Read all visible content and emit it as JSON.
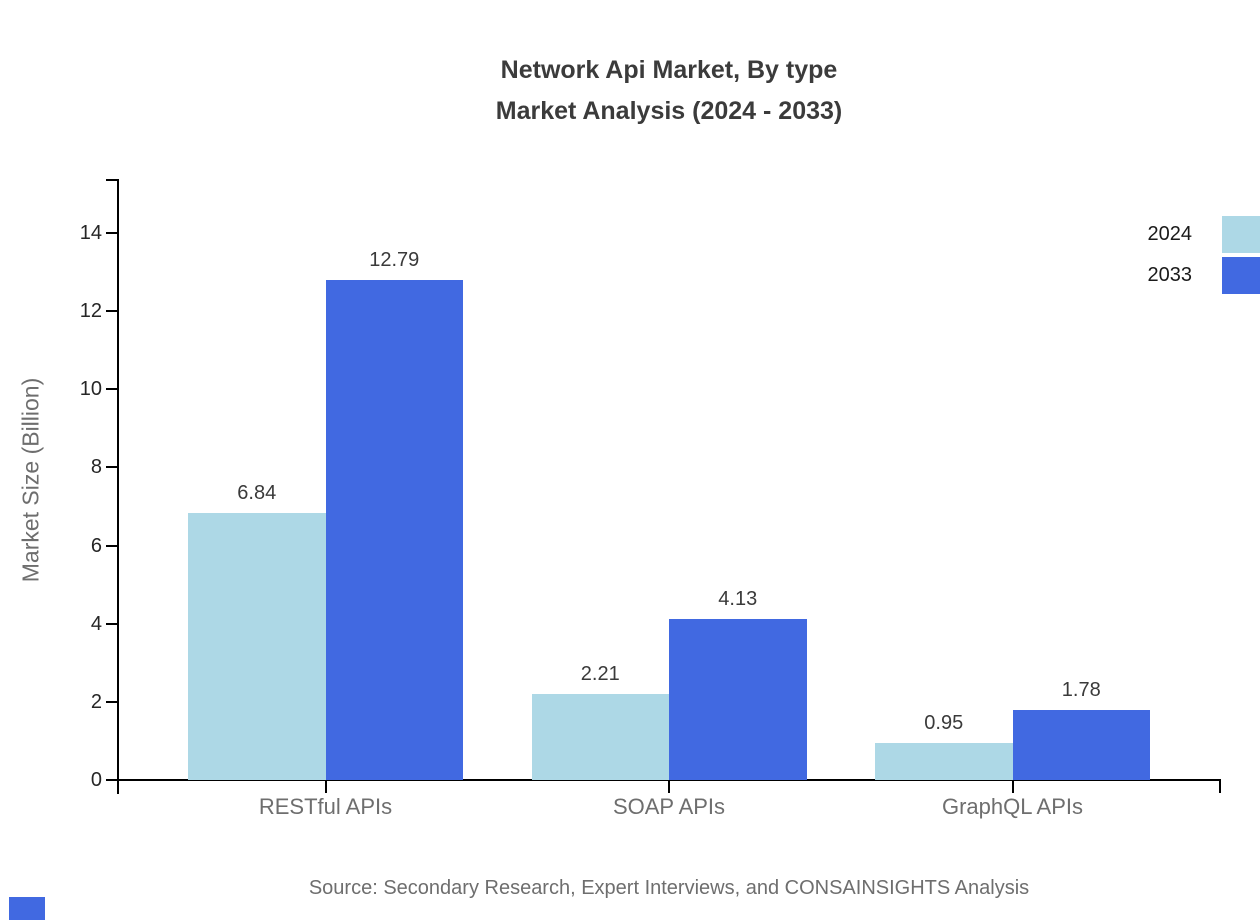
{
  "title": {
    "line1": "Network Api Market, By type",
    "line2": "Market Analysis (2024 - 2033)"
  },
  "chart_data": {
    "type": "bar",
    "title": "Network Api Market, By type — Market Analysis (2024 - 2033)",
    "categories": [
      "RESTful APIs",
      "SOAP APIs",
      "GraphQL APIs"
    ],
    "series": [
      {
        "name": "2024",
        "color": "#add8e6",
        "values": [
          6.84,
          2.21,
          0.95
        ]
      },
      {
        "name": "2033",
        "color": "#4169e1",
        "values": [
          12.79,
          4.13,
          1.78
        ]
      }
    ],
    "value_labels": [
      "6.84",
      "12.79",
      "2.21",
      "4.13",
      "0.95",
      "1.78"
    ],
    "xlabel": "",
    "ylabel": "Market Size (Billion)",
    "yticks": [
      0,
      2,
      4,
      6,
      8,
      10,
      12,
      14
    ],
    "ylim": [
      0,
      15.4
    ],
    "grid": false,
    "legend_position": "top-right"
  },
  "legend": {
    "items": [
      {
        "label": "2024",
        "color": "#add8e6"
      },
      {
        "label": "2033",
        "color": "#4169e1"
      }
    ]
  },
  "source": "Source: Secondary Research, Expert Interviews, and CONSAINSIGHTS Analysis",
  "colors": {
    "series_2024": "#add8e6",
    "series_2033": "#4169e1",
    "axis": "#000000",
    "title_text": "#3b3b3b",
    "tick_text": "#262626",
    "category_text": "#6e6e6e",
    "source_text": "#6e6e6e",
    "brand_mark": "#4169e1"
  }
}
